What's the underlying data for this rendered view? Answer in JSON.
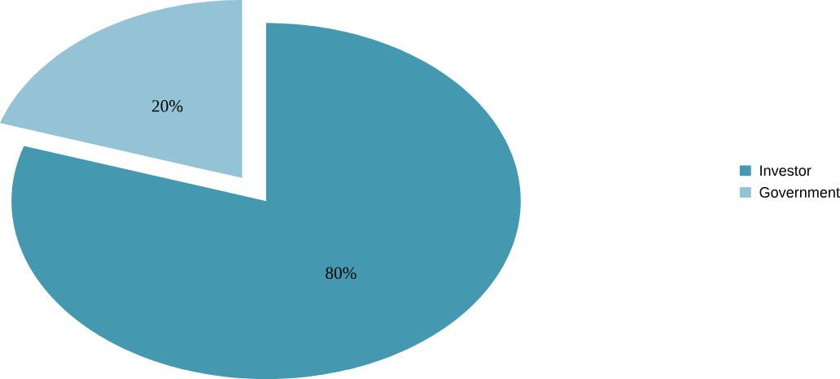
{
  "chart_data": {
    "type": "pie",
    "categories": [
      "Investor",
      "Government"
    ],
    "values": [
      80,
      20
    ],
    "colors": [
      "#4499b0",
      "#93c3d5"
    ],
    "value_labels": [
      "80%",
      "20%"
    ],
    "legend": "right"
  }
}
